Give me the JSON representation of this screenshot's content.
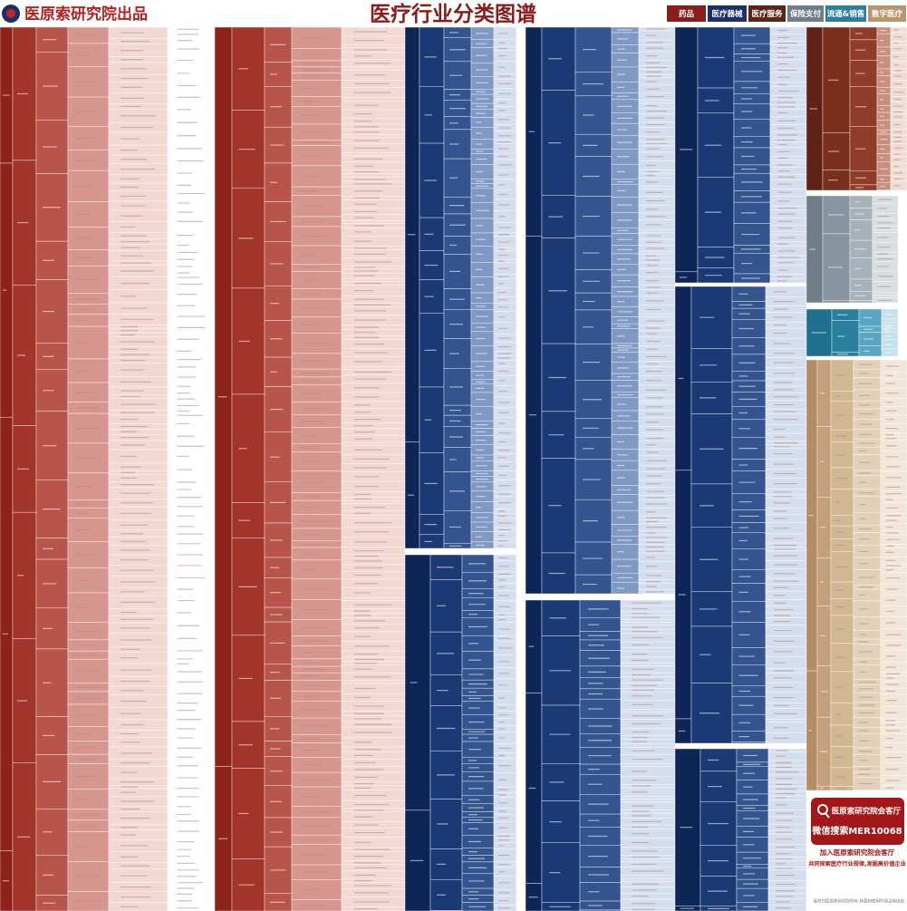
{
  "header": {
    "brand": "医原索研究院出品",
    "title": "医疗行业分类图谱",
    "tabs": [
      "药品",
      "医疗器械",
      "医疗服务",
      "保险支付",
      "流通&销售",
      "数字医疗"
    ]
  },
  "promo": {
    "name": "医原索研究院会客厅",
    "search": "微信搜索MER10068",
    "join": "加入医原索研究院会客厅",
    "slogan": "共同探索医疗行业规律,发掘高价值企业"
  },
  "footer": "版权归医原索研究院所有,转载和使用时请注明出处"
}
